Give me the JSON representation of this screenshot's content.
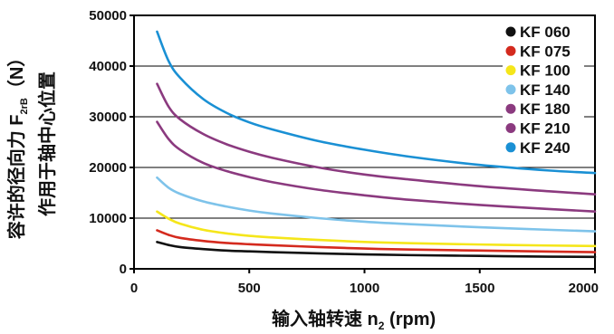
{
  "chart_data": {
    "type": "line",
    "ylabel_line1_prefix": "容许的径向力 F",
    "ylabel_line1_sub": "2rB",
    "ylabel_line1_suffix": "（N）",
    "ylabel_line2": "作用于轴中心位置",
    "xlabel_prefix": "输入轴转速 n",
    "xlabel_sub": "2",
    "xlabel_suffix": "(rpm)",
    "xlim": [
      0,
      2000
    ],
    "ylim": [
      0,
      50000
    ],
    "xticks": [
      0,
      500,
      1000,
      1500,
      2000
    ],
    "xtick_labels": [
      "0",
      "500",
      "1000",
      "1500",
      "2000"
    ],
    "yticks": [
      0,
      10000,
      20000,
      30000,
      40000,
      50000
    ],
    "ytick_labels": [
      "0",
      "10000",
      "20000",
      "30000",
      "40000",
      "50000"
    ],
    "grid": "horizontal",
    "legend_position": "top-right",
    "x": [
      100,
      150,
      200,
      300,
      400,
      500,
      600,
      800,
      1000,
      1200,
      1500,
      1800,
      2000
    ],
    "series": [
      {
        "name": "KF 060",
        "color": "#111111",
        "values": [
          5300,
          4700,
          4300,
          3900,
          3600,
          3450,
          3300,
          3050,
          2850,
          2700,
          2550,
          2400,
          2350
        ]
      },
      {
        "name": "KF 075",
        "color": "#d42a1e",
        "values": [
          7600,
          6700,
          6100,
          5500,
          5100,
          4850,
          4650,
          4300,
          4000,
          3800,
          3600,
          3400,
          3300
        ]
      },
      {
        "name": "KF 100",
        "color": "#f5e61a",
        "values": [
          11300,
          9900,
          8900,
          7700,
          7000,
          6500,
          6200,
          5700,
          5300,
          5050,
          4800,
          4600,
          4500
        ]
      },
      {
        "name": "KF 140",
        "color": "#7ec3ea",
        "values": [
          18000,
          16000,
          14800,
          13300,
          12300,
          11500,
          10900,
          10000,
          9300,
          8800,
          8200,
          7700,
          7400
        ]
      },
      {
        "name": "KF 180",
        "color": "#8b3a7f",
        "values": [
          29000,
          25600,
          23500,
          20900,
          19300,
          18100,
          17100,
          15600,
          14500,
          13600,
          12600,
          11800,
          11300
        ]
      },
      {
        "name": "KF 210",
        "color": "#8b3a7f",
        "values": [
          36500,
          32000,
          29500,
          26600,
          24600,
          23100,
          21900,
          20000,
          18600,
          17600,
          16300,
          15300,
          14700
        ]
      },
      {
        "name": "KF 240",
        "color": "#1a90d4",
        "values": [
          46800,
          41000,
          37700,
          33500,
          30800,
          28900,
          27500,
          25200,
          23500,
          22100,
          20500,
          19400,
          18900
        ]
      }
    ]
  }
}
